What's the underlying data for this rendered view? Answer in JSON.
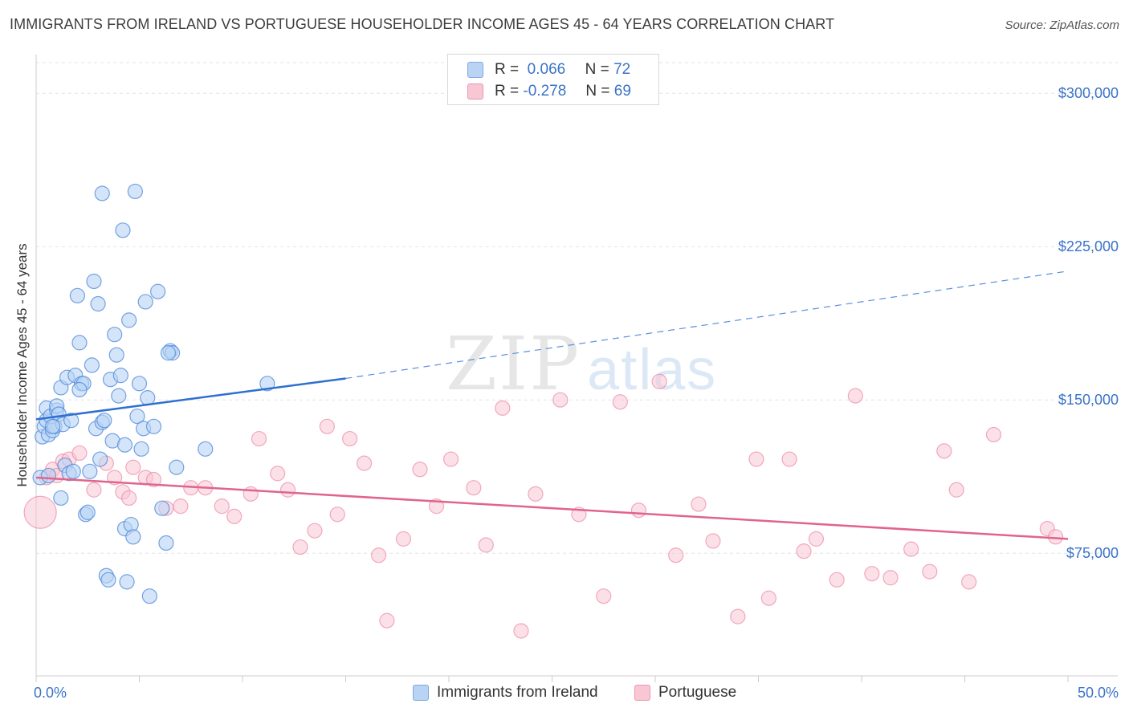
{
  "title": "IMMIGRANTS FROM IRELAND VS PORTUGUESE HOUSEHOLDER INCOME AGES 45 - 64 YEARS CORRELATION CHART",
  "source": "Source: ZipAtlas.com",
  "watermark": {
    "zip": "ZIP",
    "atlas": "atlas"
  },
  "legend": {
    "row1": {
      "r_label": "R =",
      "r_value": "0.066",
      "n_label": "N =",
      "n_value": "72"
    },
    "row2": {
      "r_label": "R =",
      "r_value": "-0.278",
      "n_label": "N =",
      "n_value": "69"
    }
  },
  "bottom_legend": {
    "series1": "Immigrants from Ireland",
    "series2": "Portuguese"
  },
  "colors": {
    "blue": "#4a86d8",
    "blue_fill": "#b9d3f5",
    "pink": "#e8779c",
    "pink_fill": "#f9c6d4",
    "tick": "#3b73c8"
  },
  "chart_data": {
    "type": "scatter",
    "title": "IMMIGRANTS FROM IRELAND VS PORTUGUESE HOUSEHOLDER INCOME AGES 45 - 64 YEARS CORRELATION CHART",
    "xlabel": "",
    "ylabel": "Householder Income Ages 45 - 64 years",
    "xlim": [
      0,
      50
    ],
    "ylim": [
      15000,
      315000
    ],
    "x_tick_labels": [
      "0.0%",
      "50.0%"
    ],
    "y_ticks": [
      75000,
      150000,
      225000,
      300000
    ],
    "y_tick_labels": [
      "$75,000",
      "$150,000",
      "$225,000",
      "$300,000"
    ],
    "series": [
      {
        "name": "Immigrants from Ireland",
        "R": 0.066,
        "N": 72,
        "trend": {
          "x0": 0,
          "y0": 140500,
          "x1": 15,
          "y1": 160500,
          "dashed_to_x": 50,
          "dashed_to_y": 213000
        },
        "points": [
          [
            0.2,
            112000
          ],
          [
            0.3,
            132000
          ],
          [
            0.4,
            137000
          ],
          [
            0.5,
            140000
          ],
          [
            0.5,
            146000
          ],
          [
            0.6,
            133000
          ],
          [
            0.7,
            142000
          ],
          [
            0.8,
            135000
          ],
          [
            0.9,
            137000
          ],
          [
            1.0,
            145000
          ],
          [
            1.0,
            147000
          ],
          [
            1.1,
            143000
          ],
          [
            1.2,
            156000
          ],
          [
            1.3,
            138000
          ],
          [
            1.4,
            118000
          ],
          [
            1.5,
            161000
          ],
          [
            1.6,
            114000
          ],
          [
            1.7,
            140000
          ],
          [
            1.8,
            115000
          ],
          [
            1.9,
            162000
          ],
          [
            2.0,
            201000
          ],
          [
            2.1,
            178000
          ],
          [
            2.2,
            158000
          ],
          [
            2.3,
            158000
          ],
          [
            2.4,
            94000
          ],
          [
            2.5,
            95000
          ],
          [
            2.6,
            115000
          ],
          [
            2.7,
            167000
          ],
          [
            2.8,
            208000
          ],
          [
            2.9,
            136000
          ],
          [
            3.0,
            197000
          ],
          [
            3.1,
            121000
          ],
          [
            3.2,
            139000
          ],
          [
            3.3,
            140000
          ],
          [
            3.4,
            64000
          ],
          [
            3.5,
            62000
          ],
          [
            3.6,
            160000
          ],
          [
            3.7,
            130000
          ],
          [
            3.8,
            182000
          ],
          [
            3.9,
            172000
          ],
          [
            4.0,
            152000
          ],
          [
            4.1,
            162000
          ],
          [
            4.2,
            233000
          ],
          [
            4.3,
            87000
          ],
          [
            4.4,
            61000
          ],
          [
            4.5,
            189000
          ],
          [
            4.6,
            89000
          ],
          [
            4.7,
            83000
          ],
          [
            4.8,
            252000
          ],
          [
            4.9,
            142000
          ],
          [
            5.0,
            158000
          ],
          [
            5.1,
            126000
          ],
          [
            5.2,
            136000
          ],
          [
            5.3,
            198000
          ],
          [
            5.4,
            151000
          ],
          [
            5.5,
            54000
          ],
          [
            5.7,
            137000
          ],
          [
            5.9,
            203000
          ],
          [
            6.1,
            97000
          ],
          [
            6.3,
            80000
          ],
          [
            6.5,
            174000
          ],
          [
            6.6,
            173000
          ],
          [
            6.8,
            117000
          ],
          [
            8.2,
            126000
          ],
          [
            11.2,
            158000
          ],
          [
            1.2,
            102000
          ],
          [
            0.8,
            137000
          ],
          [
            3.2,
            251000
          ],
          [
            4.3,
            128000
          ],
          [
            0.6,
            113000
          ],
          [
            6.4,
            173000
          ],
          [
            2.1,
            155000
          ]
        ]
      },
      {
        "name": "Portuguese",
        "R": -0.278,
        "N": 69,
        "trend": {
          "x0": 0,
          "y0": 112000,
          "x1": 50,
          "y1": 82000
        },
        "points": [
          [
            0.2,
            95000
          ],
          [
            0.5,
            112000
          ],
          [
            0.8,
            116000
          ],
          [
            1.0,
            113000
          ],
          [
            1.3,
            120000
          ],
          [
            1.6,
            121000
          ],
          [
            2.1,
            124000
          ],
          [
            2.8,
            106000
          ],
          [
            3.4,
            119000
          ],
          [
            3.8,
            112000
          ],
          [
            4.2,
            105000
          ],
          [
            4.5,
            102000
          ],
          [
            4.7,
            117000
          ],
          [
            5.3,
            112000
          ],
          [
            5.7,
            111000
          ],
          [
            6.3,
            97000
          ],
          [
            7.0,
            98000
          ],
          [
            7.5,
            107000
          ],
          [
            8.2,
            107000
          ],
          [
            9.0,
            98000
          ],
          [
            9.6,
            93000
          ],
          [
            10.4,
            104000
          ],
          [
            10.8,
            131000
          ],
          [
            11.7,
            114000
          ],
          [
            12.2,
            106000
          ],
          [
            12.8,
            78000
          ],
          [
            13.5,
            86000
          ],
          [
            14.1,
            137000
          ],
          [
            14.6,
            94000
          ],
          [
            15.2,
            131000
          ],
          [
            15.9,
            119000
          ],
          [
            16.6,
            74000
          ],
          [
            17.0,
            42000
          ],
          [
            17.8,
            82000
          ],
          [
            18.6,
            116000
          ],
          [
            19.4,
            98000
          ],
          [
            20.1,
            121000
          ],
          [
            21.2,
            107000
          ],
          [
            21.8,
            79000
          ],
          [
            22.6,
            146000
          ],
          [
            23.5,
            37000
          ],
          [
            24.2,
            104000
          ],
          [
            25.4,
            150000
          ],
          [
            26.3,
            94000
          ],
          [
            27.5,
            54000
          ],
          [
            28.3,
            149000
          ],
          [
            29.2,
            96000
          ],
          [
            30.2,
            159000
          ],
          [
            31.0,
            74000
          ],
          [
            32.1,
            99000
          ],
          [
            32.8,
            81000
          ],
          [
            34.0,
            44000
          ],
          [
            34.9,
            121000
          ],
          [
            35.5,
            53000
          ],
          [
            36.5,
            121000
          ],
          [
            37.2,
            76000
          ],
          [
            37.8,
            82000
          ],
          [
            38.8,
            62000
          ],
          [
            39.7,
            152000
          ],
          [
            40.5,
            65000
          ],
          [
            41.4,
            63000
          ],
          [
            42.4,
            77000
          ],
          [
            43.3,
            66000
          ],
          [
            44.6,
            106000
          ],
          [
            45.2,
            61000
          ],
          [
            46.4,
            133000
          ],
          [
            49.0,
            87000
          ],
          [
            49.4,
            83000
          ],
          [
            44.0,
            125000
          ]
        ]
      }
    ]
  }
}
